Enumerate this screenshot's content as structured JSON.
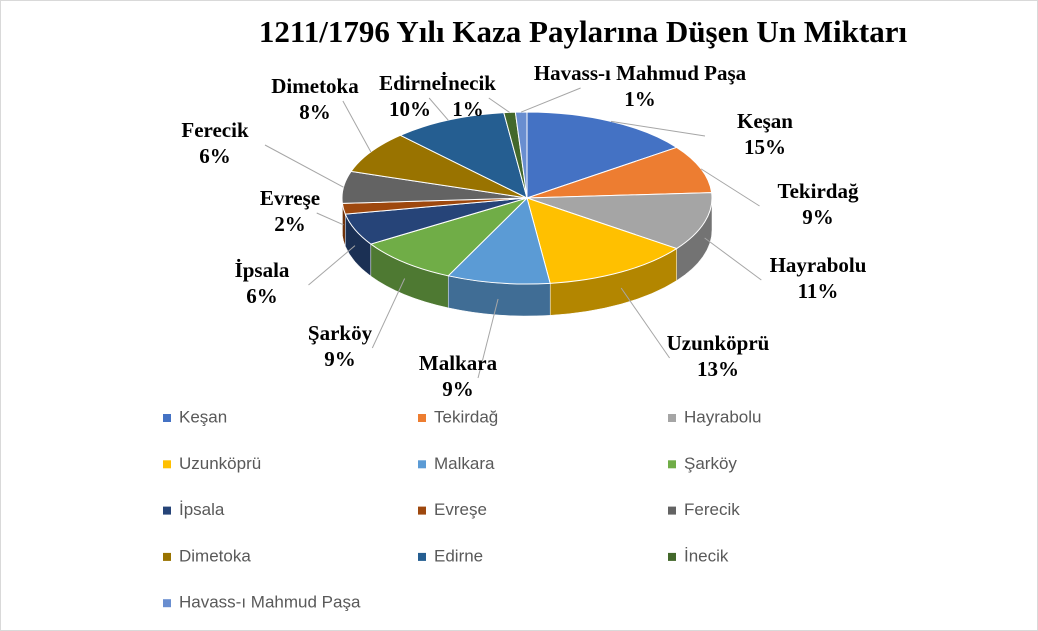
{
  "chart_data": {
    "type": "pie",
    "title": "1211/1796 Yılı Kaza Paylarına Düşen Un Miktarı",
    "categories": [
      "Keşan",
      "Tekirdağ",
      "Hayrabolu",
      "Uzunköprü",
      "Malkara",
      "Şarköy",
      "İpsala",
      "Evreşe",
      "Ferecik",
      "Dimetoka",
      "Edirne",
      "İnecik",
      "Havass-ı Mahmud Paşa"
    ],
    "values": [
      15,
      9,
      11,
      13,
      9,
      9,
      6,
      2,
      6,
      8,
      10,
      1,
      1
    ],
    "value_labels": [
      "15%",
      "9%",
      "11%",
      "13%",
      "9%",
      "9%",
      "6%",
      "2%",
      "6%",
      "8%",
      "10%",
      "1%",
      "1%"
    ],
    "colors": [
      "#4472c4",
      "#ed7d31",
      "#a5a5a5",
      "#ffc000",
      "#5b9bd5",
      "#70ad47",
      "#264478",
      "#9e480e",
      "#636363",
      "#997300",
      "#255e91",
      "#43682b",
      "#698ed0"
    ],
    "legend": "bottom"
  }
}
